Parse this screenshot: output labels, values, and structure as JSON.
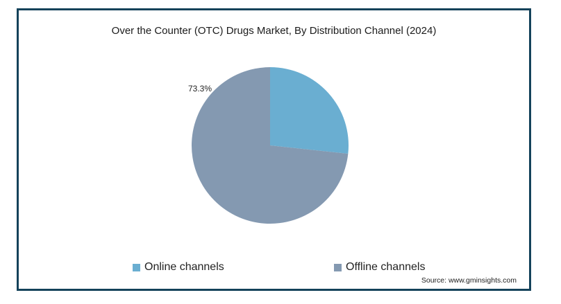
{
  "chart_data": {
    "type": "pie",
    "title": "Over the Counter (OTC) Drugs Market, By Distribution Channel (2024)",
    "slices": [
      {
        "name": "Online channels",
        "value": 26.7,
        "color": "#6aaed1",
        "label": ""
      },
      {
        "name": "Offline channels",
        "value": 73.3,
        "color": "#8499b1",
        "label": "73.3%"
      }
    ],
    "legend_position": "bottom"
  },
  "source": "Source: www.gminsights.com"
}
